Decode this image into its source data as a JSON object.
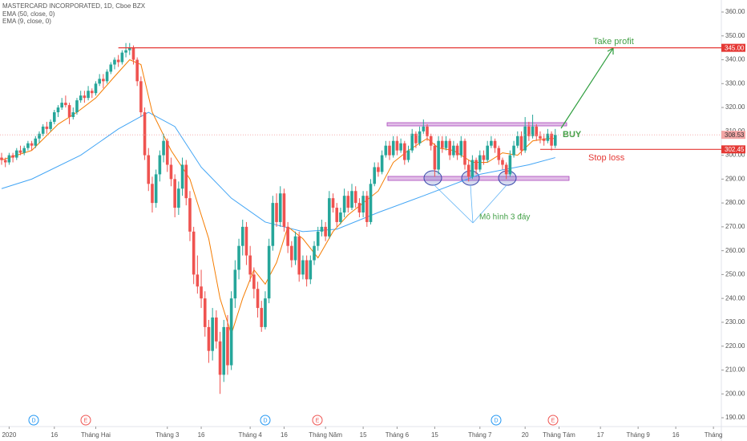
{
  "chart_data": {
    "type": "candlestick",
    "title": "MASTERCARD INCORPORATED, 1D, Cboe BZX",
    "up_color": "#26a69a",
    "down_color": "#ef5350",
    "ylim": [
      190,
      360
    ],
    "yticks": [
      {
        "value": 190,
        "label": "190.00"
      },
      {
        "value": 200,
        "label": "200.00"
      },
      {
        "value": 210,
        "label": "210.00"
      },
      {
        "value": 220,
        "label": "220.00"
      },
      {
        "value": 230,
        "label": "230.00"
      },
      {
        "value": 240,
        "label": "240.00"
      },
      {
        "value": 250,
        "label": "250.00"
      },
      {
        "value": 260,
        "label": "260.00"
      },
      {
        "value": 270,
        "label": "270.00"
      },
      {
        "value": 280,
        "label": "280.00"
      },
      {
        "value": 290,
        "label": "290.00"
      },
      {
        "value": 300,
        "label": "300.00"
      },
      {
        "value": 310,
        "label": "310.00"
      },
      {
        "value": 320,
        "label": "320.00"
      },
      {
        "value": 330,
        "label": "330.00"
      },
      {
        "value": 340,
        "label": "340.00"
      },
      {
        "value": 350,
        "label": "350.00"
      },
      {
        "value": 360,
        "label": "360.00"
      }
    ],
    "xlim": [
      0,
      191.1
    ],
    "xticks": [
      {
        "value": 2,
        "label": "2020"
      },
      {
        "value": 14,
        "label": "16"
      },
      {
        "value": 25,
        "label": "Tháng Hai"
      },
      {
        "value": 44,
        "label": "Tháng 3"
      },
      {
        "value": 53,
        "label": "16"
      },
      {
        "value": 66,
        "label": "Tháng 4"
      },
      {
        "value": 75,
        "label": "16"
      },
      {
        "value": 86,
        "label": "Tháng Năm"
      },
      {
        "value": 96,
        "label": "15"
      },
      {
        "value": 105,
        "label": "Tháng 6"
      },
      {
        "value": 115,
        "label": "15"
      },
      {
        "value": 127,
        "label": "Tháng 7"
      },
      {
        "value": 139,
        "label": "20"
      },
      {
        "value": 148,
        "label": "Tháng Tám"
      },
      {
        "value": 159,
        "label": "17"
      },
      {
        "value": 169,
        "label": "Tháng 9"
      },
      {
        "value": 179,
        "label": "16"
      },
      {
        "value": 189,
        "label": "Tháng"
      }
    ],
    "candles": [
      [
        299,
        301,
        296,
        298
      ],
      [
        298,
        299,
        295,
        297
      ],
      [
        297,
        301,
        296,
        300
      ],
      [
        300,
        301,
        297,
        299
      ],
      [
        299,
        303,
        298,
        302
      ],
      [
        302,
        304,
        300,
        301
      ],
      [
        301,
        304,
        300,
        303
      ],
      [
        303,
        306,
        302,
        305
      ],
      [
        305,
        306,
        302,
        304
      ],
      [
        304,
        308,
        303,
        307
      ],
      [
        307,
        310,
        305,
        309
      ],
      [
        309,
        313,
        308,
        312
      ],
      [
        312,
        314,
        309,
        311
      ],
      [
        311,
        315,
        310,
        314
      ],
      [
        314,
        319,
        313,
        318
      ],
      [
        318,
        321,
        316,
        320
      ],
      [
        320,
        324,
        319,
        322
      ],
      [
        322,
        325,
        320,
        321
      ],
      [
        321,
        322,
        313,
        316
      ],
      [
        316,
        320,
        315,
        318
      ],
      [
        318,
        324,
        317,
        323
      ],
      [
        323,
        327,
        322,
        325
      ],
      [
        325,
        327,
        322,
        324
      ],
      [
        324,
        329,
        323,
        327
      ],
      [
        327,
        328,
        324,
        326
      ],
      [
        326,
        331,
        325,
        330
      ],
      [
        330,
        334,
        329,
        332
      ],
      [
        332,
        334,
        328,
        331
      ],
      [
        331,
        336,
        330,
        335
      ],
      [
        335,
        339,
        334,
        338
      ],
      [
        338,
        341,
        336,
        340
      ],
      [
        340,
        342,
        337,
        339
      ],
      [
        339,
        344,
        338,
        343
      ],
      [
        343,
        347,
        341,
        344
      ],
      [
        344,
        347,
        342,
        345
      ],
      [
        345,
        346,
        338,
        340
      ],
      [
        340,
        341,
        329,
        331
      ],
      [
        331,
        333,
        316,
        318
      ],
      [
        318,
        320,
        298,
        300
      ],
      [
        300,
        303,
        285,
        288
      ],
      [
        288,
        291,
        276,
        280
      ],
      [
        280,
        294,
        278,
        292
      ],
      [
        292,
        302,
        289,
        300
      ],
      [
        300,
        309,
        297,
        306
      ],
      [
        306,
        307,
        293,
        296
      ],
      [
        296,
        299,
        287,
        290
      ],
      [
        290,
        292,
        274,
        278
      ],
      [
        278,
        289,
        275,
        286
      ],
      [
        286,
        299,
        283,
        296
      ],
      [
        296,
        298,
        279,
        282
      ],
      [
        282,
        285,
        264,
        268
      ],
      [
        268,
        270,
        246,
        250
      ],
      [
        250,
        258,
        242,
        245
      ],
      [
        245,
        252,
        236,
        240
      ],
      [
        240,
        243,
        224,
        228
      ],
      [
        228,
        231,
        213,
        218
      ],
      [
        218,
        236,
        214,
        232
      ],
      [
        232,
        235,
        219,
        222
      ],
      [
        222,
        226,
        200,
        208
      ],
      [
        208,
        231,
        205,
        228
      ],
      [
        228,
        233,
        208,
        212
      ],
      [
        212,
        243,
        210,
        240
      ],
      [
        240,
        256,
        236,
        252
      ],
      [
        252,
        265,
        248,
        262
      ],
      [
        262,
        273,
        258,
        270
      ],
      [
        270,
        272,
        254,
        258
      ],
      [
        258,
        262,
        247,
        250
      ],
      [
        250,
        253,
        240,
        244
      ],
      [
        244,
        247,
        232,
        236
      ],
      [
        236,
        239,
        226,
        228
      ],
      [
        228,
        243,
        227,
        240
      ],
      [
        240,
        265,
        238,
        262
      ],
      [
        262,
        283,
        260,
        280
      ],
      [
        280,
        284,
        270,
        272
      ],
      [
        272,
        287,
        270,
        284
      ],
      [
        284,
        286,
        268,
        270
      ],
      [
        270,
        272,
        259,
        262
      ],
      [
        262,
        264,
        253,
        256
      ],
      [
        256,
        268,
        254,
        266
      ],
      [
        266,
        268,
        247,
        250
      ],
      [
        250,
        258,
        248,
        256
      ],
      [
        256,
        258,
        245,
        248
      ],
      [
        248,
        258,
        246,
        256
      ],
      [
        256,
        264,
        254,
        262
      ],
      [
        262,
        270,
        260,
        268
      ],
      [
        268,
        273,
        266,
        270
      ],
      [
        270,
        272,
        264,
        266
      ],
      [
        266,
        285,
        265,
        282
      ],
      [
        282,
        284,
        276,
        278
      ],
      [
        278,
        280,
        270,
        272
      ],
      [
        272,
        278,
        271,
        276
      ],
      [
        276,
        286,
        274,
        283
      ],
      [
        283,
        285,
        276,
        278
      ],
      [
        278,
        288,
        277,
        285
      ],
      [
        285,
        287,
        278,
        280
      ],
      [
        280,
        282,
        274,
        276
      ],
      [
        276,
        285,
        274,
        283
      ],
      [
        283,
        285,
        270,
        272
      ],
      [
        272,
        290,
        271,
        288
      ],
      [
        288,
        297,
        287,
        295
      ],
      [
        295,
        297,
        291,
        293
      ],
      [
        293,
        302,
        292,
        300
      ],
      [
        300,
        306,
        299,
        304
      ],
      [
        304,
        306,
        298,
        300
      ],
      [
        300,
        308,
        299,
        306
      ],
      [
        306,
        308,
        300,
        302
      ],
      [
        302,
        307,
        301,
        305
      ],
      [
        305,
        306,
        296,
        298
      ],
      [
        298,
        304,
        297,
        302
      ],
      [
        302,
        311,
        301,
        309
      ],
      [
        309,
        310,
        303,
        305
      ],
      [
        305,
        312,
        304,
        310
      ],
      [
        310,
        315,
        309,
        312
      ],
      [
        312,
        313,
        306,
        308
      ],
      [
        308,
        309,
        302,
        304
      ],
      [
        304,
        305,
        291,
        294
      ],
      [
        294,
        308,
        292,
        306
      ],
      [
        306,
        308,
        301,
        303
      ],
      [
        303,
        308,
        302,
        306
      ],
      [
        306,
        307,
        298,
        300
      ],
      [
        300,
        306,
        299,
        304
      ],
      [
        304,
        305,
        298,
        300
      ],
      [
        300,
        308,
        299,
        306
      ],
      [
        306,
        307,
        294,
        296
      ],
      [
        296,
        298,
        289,
        291
      ],
      [
        291,
        300,
        290,
        298
      ],
      [
        298,
        299,
        292,
        294
      ],
      [
        294,
        302,
        293,
        300
      ],
      [
        300,
        302,
        296,
        298
      ],
      [
        298,
        306,
        297,
        304
      ],
      [
        304,
        308,
        303,
        306
      ],
      [
        306,
        307,
        301,
        303
      ],
      [
        303,
        304,
        296,
        298
      ],
      [
        298,
        299,
        294,
        296
      ],
      [
        296,
        297,
        290,
        292
      ],
      [
        292,
        302,
        291,
        300
      ],
      [
        300,
        306,
        299,
        304
      ],
      [
        304,
        310,
        303,
        308
      ],
      [
        308,
        310,
        300,
        302
      ],
      [
        302,
        316,
        301,
        312
      ],
      [
        312,
        314,
        306,
        308
      ],
      [
        308,
        317,
        307,
        312
      ],
      [
        312,
        313,
        306,
        308
      ],
      [
        308,
        310,
        305,
        307
      ],
      [
        307,
        309,
        304,
        306
      ],
      [
        306,
        311,
        305,
        309
      ],
      [
        309,
        310,
        302,
        304
      ],
      [
        304,
        311,
        303,
        308.53
      ]
    ],
    "series": [
      {
        "name": "EMA (50, close, 0)",
        "color": "#42a5f5",
        "x": [
          0,
          8,
          21,
          31,
          39,
          46,
          53,
          61,
          70,
          80,
          89,
          100,
          112,
          127,
          140,
          147
        ],
        "values": [
          286,
          290,
          300,
          311,
          318,
          312,
          295,
          282,
          272,
          268,
          269,
          276,
          283,
          292,
          296,
          299
        ]
      },
      {
        "name": "EMA (9, close, 0)",
        "color": "#f57c00",
        "x": [
          0,
          8,
          15,
          20,
          25,
          30,
          34,
          37,
          40,
          45,
          50,
          55,
          58,
          61,
          64,
          67,
          70,
          73,
          76,
          80,
          84,
          88,
          92,
          96,
          100,
          104,
          108,
          113,
          116,
          120,
          125,
          129,
          133,
          137,
          141,
          145,
          147
        ],
        "values": [
          298,
          302,
          313,
          318,
          324,
          333,
          340,
          338,
          318,
          302,
          290,
          265,
          240,
          225,
          240,
          252,
          246,
          255,
          270,
          265,
          257,
          268,
          275,
          280,
          285,
          297,
          302,
          307,
          303,
          302,
          297,
          297,
          301,
          300,
          306,
          307,
          307
        ]
      }
    ],
    "levels": [
      {
        "value": 345,
        "label": "345.00",
        "color": "#e53935"
      },
      {
        "value": 308.53,
        "label": "308.53",
        "color": "#f3a5a5"
      },
      {
        "value": 302.45,
        "label": "302.45",
        "color": "#e53935"
      }
    ],
    "annotations": [
      "Take profit",
      "BUY",
      "Stop loss",
      "Mô hình 3 đáy"
    ],
    "events": [
      "D",
      "E",
      "D",
      "E",
      "D",
      "E"
    ]
  }
}
